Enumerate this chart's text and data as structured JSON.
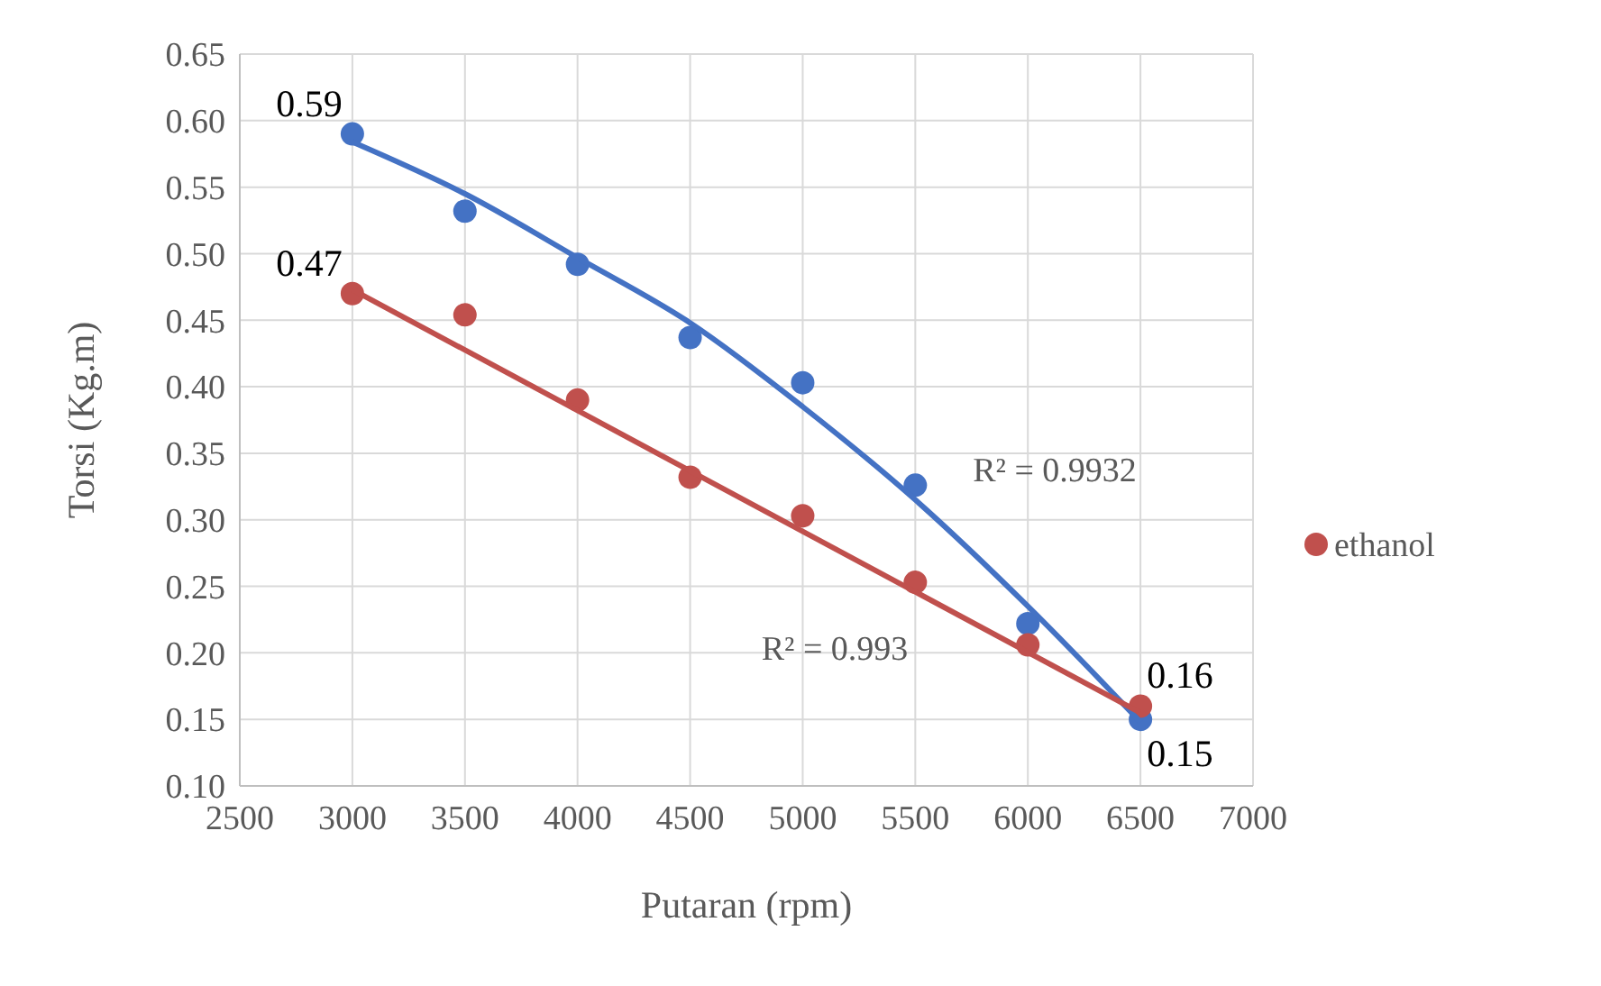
{
  "chart_data": {
    "type": "scatter",
    "xlabel": "Putaran (rpm)",
    "ylabel": "Torsi (Kg.m)",
    "xlim": [
      2500,
      7000
    ],
    "xticks": [
      2500,
      3000,
      3500,
      4000,
      4500,
      5000,
      5500,
      6000,
      6500,
      7000
    ],
    "ylim": [
      0.1,
      0.65
    ],
    "yticks": [
      {
        "value": 0.1,
        "label": "0.10"
      },
      {
        "value": 0.15,
        "label": "0.15"
      },
      {
        "value": 0.2,
        "label": "0.20"
      },
      {
        "value": 0.25,
        "label": "0.25"
      },
      {
        "value": 0.3,
        "label": "0.30"
      },
      {
        "value": 0.35,
        "label": "0.35"
      },
      {
        "value": 0.4,
        "label": "0.40"
      },
      {
        "value": 0.45,
        "label": "0.45"
      },
      {
        "value": 0.5,
        "label": "0.50"
      },
      {
        "value": 0.55,
        "label": "0.55"
      },
      {
        "value": 0.6,
        "label": "0.60"
      },
      {
        "value": 0.65,
        "label": "0.65"
      }
    ],
    "grid": true,
    "legend": "right",
    "marker": "circle",
    "x": [
      3000,
      3500,
      4000,
      4500,
      5000,
      5500,
      6000,
      6500
    ],
    "series": [
      {
        "color": "#4472c4",
        "values": [
          0.59,
          0.532,
          0.492,
          0.437,
          0.403,
          0.326,
          0.222,
          0.15
        ],
        "value_labels": [
          "0.59",
          null,
          null,
          null,
          null,
          null,
          null,
          "0.15"
        ]
      },
      {
        "name": "ethanol",
        "color": "#c0504d",
        "values": [
          0.47,
          0.454,
          0.39,
          0.332,
          0.303,
          0.253,
          0.206,
          0.16
        ],
        "value_labels": [
          "0.47",
          null,
          null,
          null,
          null,
          null,
          null,
          "0.16"
        ]
      },
      {
        "type": "line",
        "marker": "none",
        "color": "#4472c4",
        "x": [
          3000,
          3500,
          4000,
          4500,
          5000,
          5500,
          6000,
          6500
        ],
        "values": [
          0.584,
          0.545,
          0.497,
          0.448,
          0.385,
          0.315,
          0.235,
          0.148
        ]
      },
      {
        "type": "line",
        "marker": "none",
        "color": "#c0504d",
        "x": [
          3000,
          6500
        ],
        "values": [
          0.473,
          0.155
        ]
      }
    ],
    "annotations": [
      "R² = 0.9932",
      "R² = 0.993"
    ]
  }
}
